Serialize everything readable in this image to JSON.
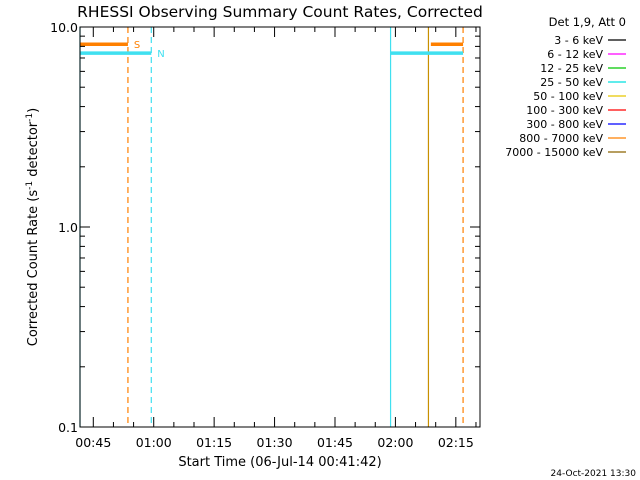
{
  "chart_data": {
    "type": "line",
    "title": "RHESSI Observing Summary Count Rates, Corrected",
    "xlabel": "Start Time (06-Jul-14 00:41:42)",
    "ylabel_main": "Corrected Count Rate (s",
    "ylabel_sup1": "-1",
    "ylabel_mid": " detector",
    "ylabel_sup2": "-1",
    "ylabel_end": ")",
    "yscale": "log",
    "ylim": [
      0.1,
      10.0
    ],
    "xlim_minutes": [
      41.7,
      141.0
    ],
    "x_ticks": [
      {
        "m": 45,
        "label": "00:45"
      },
      {
        "m": 60,
        "label": "01:00"
      },
      {
        "m": 75,
        "label": "01:15"
      },
      {
        "m": 90,
        "label": "01:30"
      },
      {
        "m": 105,
        "label": "01:45"
      },
      {
        "m": 120,
        "label": "02:00"
      },
      {
        "m": 135,
        "label": "02:15"
      }
    ],
    "y_ticks": [
      {
        "v": 10.0,
        "label": "10.0"
      },
      {
        "v": 1.0,
        "label": "1.0"
      },
      {
        "v": 0.1,
        "label": "0.1"
      }
    ],
    "legend_title": "Det 1,9, Att 0",
    "legend": [
      {
        "label": "3 - 6 keV",
        "color": "#000000"
      },
      {
        "label": "6 - 12 keV",
        "color": "#ff00ff"
      },
      {
        "label": "12 - 25 keV",
        "color": "#00c800"
      },
      {
        "label": "25 - 50 keV",
        "color": "#00e0e0"
      },
      {
        "label": "50 - 100 keV",
        "color": "#e6c800"
      },
      {
        "label": "100 - 300 keV",
        "color": "#ff0000"
      },
      {
        "label": "300 - 800 keV",
        "color": "#0000ff"
      },
      {
        "label": "800 - 7000 keV",
        "color": "#ff8000"
      },
      {
        "label": "7000 - 15000 keV",
        "color": "#8c6400"
      }
    ],
    "flag_segments": [
      {
        "label": "S",
        "color": "#ff8000",
        "y": 8.2,
        "segments": [
          [
            41.7,
            53.6
          ],
          [
            128.8,
            136.8
          ]
        ]
      },
      {
        "label": "N",
        "color": "#40e0f0",
        "y": 7.4,
        "segments": [
          [
            41.7,
            59.4
          ],
          [
            118.8,
            136.8
          ]
        ]
      }
    ],
    "event_lines": [
      {
        "m": 53.6,
        "color": "#ff8000",
        "style": "dashed"
      },
      {
        "m": 59.4,
        "color": "#40e0f0",
        "style": "dashed"
      },
      {
        "m": 41.7,
        "color": "#40e0f0",
        "style": "solid"
      },
      {
        "m": 118.8,
        "color": "#40e0f0",
        "style": "solid"
      },
      {
        "m": 128.2,
        "color": "#c89000",
        "style": "solid"
      },
      {
        "m": 136.8,
        "color": "#ff8000",
        "style": "dashed"
      }
    ]
  },
  "footer": {
    "date": "24-Oct-2021 13:30"
  }
}
